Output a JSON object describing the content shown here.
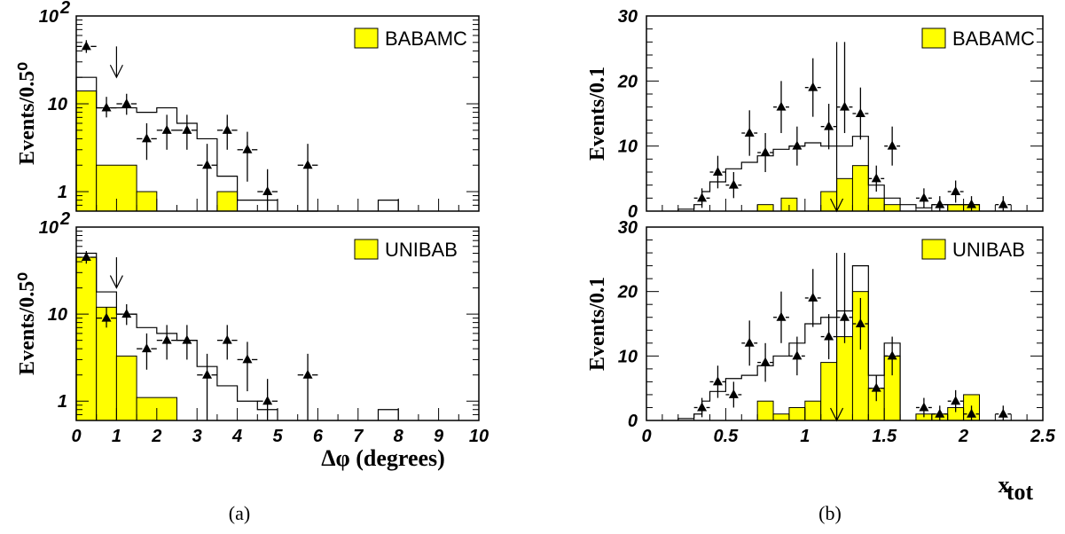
{
  "chart_data": [
    {
      "type": "bar",
      "ylabel": "Events/0.5⁰",
      "log_y": true,
      "ylim": [
        0.6,
        100
      ],
      "xlim": [
        0,
        10
      ],
      "x_tick_labels": [],
      "y_tick_labels": [
        {
          "label": "10",
          "sup": "2",
          "value": 100
        },
        {
          "label": "10",
          "sup": "",
          "value": 10
        },
        {
          "label": "1",
          "sup": "",
          "value": 1
        }
      ],
      "legend": "BABAMC",
      "cut_arrow": {
        "x": 1.0,
        "direction": "down",
        "from_y": 45,
        "to_y": 20
      },
      "series": [
        {
          "kind": "filled",
          "name": "BABAMC",
          "color": "#ffff00",
          "bin_edges": [
            0,
            0.5,
            1.5,
            2.0,
            3.5,
            4.0,
            4.5
          ],
          "values": [
            14,
            2,
            1,
            0,
            1,
            0
          ]
        },
        {
          "kind": "outline",
          "bin_edges": [
            0,
            0.5,
            1.5,
            2.0,
            2.5,
            3.0,
            3.5,
            4.0,
            4.5,
            5.0,
            5.5,
            6.0,
            7.5,
            8.0
          ],
          "values": [
            20,
            9,
            8,
            9,
            6,
            4,
            1.5,
            0.8,
            0.8,
            0,
            0.6,
            0,
            0.8
          ]
        },
        {
          "kind": "points",
          "x": [
            0.25,
            0.75,
            1.25,
            1.75,
            2.25,
            2.75,
            3.25,
            3.75,
            4.25,
            4.75,
            5.75
          ],
          "y": [
            45,
            9,
            10,
            4,
            5,
            5,
            2,
            5,
            3,
            1,
            2
          ],
          "err_low": [
            38,
            7,
            7.5,
            2.3,
            3,
            3,
            0.6,
            3,
            1.3,
            0.25,
            0.6
          ],
          "err_high": [
            53,
            12,
            13,
            6,
            7.5,
            7.5,
            3.5,
            7.5,
            4.8,
            1.8,
            3.5
          ]
        }
      ]
    },
    {
      "type": "bar",
      "ylabel": "Events/0.5⁰",
      "log_y": true,
      "ylim": [
        0.6,
        100
      ],
      "xlim": [
        0,
        10
      ],
      "xlabel": "Δφ (degrees)",
      "x_tick_labels": [
        "0",
        "1",
        "2",
        "3",
        "4",
        "5",
        "6",
        "7",
        "8",
        "9",
        "10"
      ],
      "y_tick_labels": [
        {
          "label": "10",
          "sup": "2",
          "value": 100
        },
        {
          "label": "10",
          "sup": "",
          "value": 10
        },
        {
          "label": "1",
          "sup": "",
          "value": 1
        }
      ],
      "legend": "UNIBAB",
      "cut_arrow": {
        "x": 1.0,
        "direction": "down",
        "from_y": 45,
        "to_y": 20
      },
      "series": [
        {
          "kind": "filled",
          "name": "UNIBAB",
          "color": "#ffff00",
          "bin_edges": [
            0,
            0.5,
            1.0,
            1.5,
            2.5
          ],
          "values": [
            45,
            12,
            3.3,
            1.1
          ]
        },
        {
          "kind": "outline",
          "bin_edges": [
            0,
            0.5,
            1.0,
            1.5,
            2.0,
            2.5,
            3.0,
            3.5,
            4.0,
            4.5,
            5.0,
            7.5,
            8.0
          ],
          "values": [
            50,
            18,
            10,
            7,
            6,
            5,
            2.5,
            1.5,
            1.0,
            0.8,
            0,
            0.8
          ]
        },
        {
          "kind": "points",
          "x": [
            0.25,
            0.75,
            1.25,
            1.75,
            2.25,
            2.75,
            3.25,
            3.75,
            4.25,
            4.75,
            5.75
          ],
          "y": [
            45,
            9,
            10,
            4,
            5,
            5,
            2,
            5,
            3,
            1,
            2
          ],
          "err_low": [
            38,
            7,
            7.5,
            2.3,
            3,
            3,
            0.6,
            3,
            1.3,
            0.25,
            0.6
          ],
          "err_high": [
            53,
            12,
            13,
            6,
            7.5,
            7.5,
            3.5,
            7.5,
            4.8,
            1.8,
            3.5
          ]
        }
      ]
    },
    {
      "type": "bar",
      "ylabel": "Events/0.1",
      "log_y": false,
      "ylim": [
        0,
        30
      ],
      "xlim": [
        0,
        2.5
      ],
      "x_tick_labels": [],
      "y_tick_labels": [
        {
          "label": "30",
          "sup": "",
          "value": 30
        },
        {
          "label": "20",
          "sup": "",
          "value": 20
        },
        {
          "label": "10",
          "sup": "",
          "value": 10
        },
        {
          "label": "0",
          "sup": "",
          "value": 0
        }
      ],
      "legend": "BABAMC",
      "cut_arrow": {
        "x": 1.2,
        "direction": "down",
        "from_y": 26,
        "to_y": 0
      },
      "series": [
        {
          "kind": "filled",
          "name": "BABAMC",
          "color": "#ffff00",
          "bin_edges": [
            0.55,
            0.6,
            0.7,
            0.8,
            0.85,
            0.95,
            1.1,
            1.2,
            1.3,
            1.4,
            1.5,
            1.6,
            1.9,
            2.0,
            2.1
          ],
          "values": [
            0,
            0,
            1,
            0,
            2,
            0,
            3,
            5,
            7,
            2,
            1,
            0,
            1,
            1
          ]
        },
        {
          "kind": "outline",
          "bin_edges": [
            0.2,
            0.3,
            0.35,
            0.4,
            0.5,
            0.6,
            0.7,
            0.8,
            0.9,
            1.0,
            1.1,
            1.2,
            1.3,
            1.4,
            1.5,
            1.6,
            1.7,
            1.8,
            2.0,
            2.1
          ],
          "values": [
            0.3,
            1,
            3,
            4.5,
            6.5,
            7.5,
            8.5,
            9.5,
            10,
            10.5,
            10,
            10,
            11.5,
            4,
            2,
            1,
            0.5,
            1,
            1
          ]
        },
        {
          "kind": "points",
          "x": [
            0.35,
            0.45,
            0.55,
            0.65,
            0.75,
            0.85,
            0.95,
            1.05,
            1.15,
            1.25,
            1.35,
            1.45,
            1.55,
            1.75,
            1.85,
            1.95,
            2.05,
            2.25
          ],
          "y": [
            2,
            6,
            4,
            12,
            9,
            16,
            10,
            19,
            13,
            16,
            15,
            5,
            10,
            2,
            1,
            3,
            1,
            1
          ],
          "err_low": [
            0.5,
            3.5,
            2,
            8.5,
            6,
            12,
            7,
            14.5,
            9.5,
            12,
            11,
            3,
            7,
            0.5,
            0,
            1.3,
            0,
            0
          ],
          "err_high": [
            3.5,
            8.5,
            6,
            15.5,
            12,
            20,
            13,
            23.5,
            16.5,
            26,
            19,
            7,
            13,
            3.5,
            2.3,
            4.7,
            2.3,
            2.3
          ]
        }
      ]
    },
    {
      "type": "bar",
      "ylabel": "Events/0.1",
      "log_y": false,
      "ylim": [
        0,
        30
      ],
      "xlim": [
        0,
        2.5
      ],
      "xlabel": "x",
      "xlabel_sub": "tot",
      "x_tick_labels": [
        "0",
        "0.5",
        "1",
        "1.5",
        "2",
        "2.5"
      ],
      "x_tick_values": [
        0,
        0.5,
        1,
        1.5,
        2,
        2.5
      ],
      "y_tick_labels": [
        {
          "label": "30",
          "sup": "",
          "value": 30
        },
        {
          "label": "20",
          "sup": "",
          "value": 20
        },
        {
          "label": "10",
          "sup": "",
          "value": 10
        },
        {
          "label": "0",
          "sup": "",
          "value": 0
        }
      ],
      "legend": "UNIBAB",
      "cut_arrow": {
        "x": 1.2,
        "direction": "down",
        "from_y": 26,
        "to_y": 0
      },
      "series": [
        {
          "kind": "filled",
          "name": "UNIBAB",
          "color": "#ffff00",
          "bin_edges": [
            0.7,
            0.8,
            0.9,
            1.0,
            1.1,
            1.2,
            1.3,
            1.4,
            1.5,
            1.6,
            1.7,
            1.8,
            1.9,
            2.0,
            2.1
          ],
          "values": [
            3,
            1,
            2,
            3,
            9,
            13,
            20,
            5,
            10,
            0,
            1,
            1,
            2,
            4
          ]
        },
        {
          "kind": "outline",
          "bin_edges": [
            0.2,
            0.3,
            0.35,
            0.4,
            0.5,
            0.6,
            0.7,
            0.8,
            0.9,
            1.0,
            1.1,
            1.2,
            1.3,
            1.4,
            1.5,
            1.6
          ],
          "values": [
            0.3,
            1,
            3,
            4.5,
            6.5,
            7,
            8.5,
            10,
            12,
            15,
            16,
            17,
            24,
            7,
            12
          ]
        },
        {
          "kind": "points",
          "x": [
            0.35,
            0.45,
            0.55,
            0.65,
            0.75,
            0.85,
            0.95,
            1.05,
            1.15,
            1.25,
            1.35,
            1.45,
            1.55,
            1.75,
            1.85,
            1.95,
            2.05,
            2.25
          ],
          "y": [
            2,
            6,
            4,
            12,
            9,
            16,
            10,
            19,
            13,
            16,
            15,
            5,
            10,
            2,
            1,
            3,
            1,
            1
          ],
          "err_low": [
            0.5,
            3.5,
            2,
            8.5,
            6,
            12,
            7,
            14.5,
            9.5,
            12,
            11,
            3,
            7,
            0.5,
            0,
            1.3,
            0,
            0
          ],
          "err_high": [
            3.5,
            8.5,
            6,
            15.5,
            12,
            20,
            13,
            23.5,
            16.5,
            26,
            19,
            7,
            13,
            3.5,
            2.3,
            4.7,
            2.3,
            2.3
          ]
        }
      ]
    }
  ],
  "captions": {
    "left": "(a)",
    "right": "(b)"
  }
}
